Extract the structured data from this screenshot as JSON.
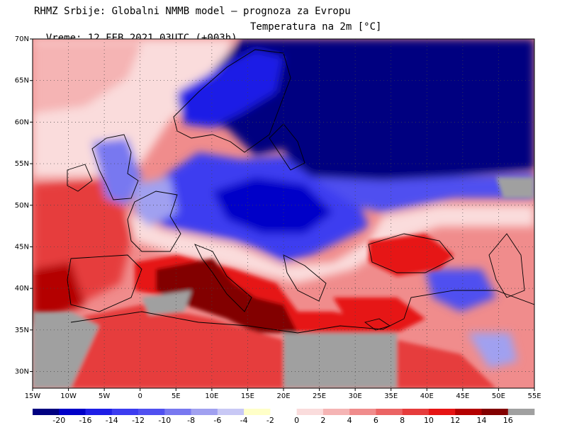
{
  "header": {
    "line1": "RHMZ Srbije: Globalni NMMB model — prognoza za Evropu",
    "line2_time": "Vreme: 12 FEB 2021 03UTC (+003h)",
    "line2_param": "Temperatura na 2m [°C]"
  },
  "map": {
    "lon_range": [
      -15,
      55
    ],
    "lat_range": [
      28,
      70
    ],
    "lat_labels": [
      "70N",
      "65N",
      "60N",
      "55N",
      "50N",
      "45N",
      "40N",
      "35N",
      "30N"
    ],
    "lat_values": [
      70,
      65,
      60,
      55,
      50,
      45,
      40,
      35,
      30
    ],
    "lon_labels": [
      "15W",
      "10W",
      "5W",
      "0",
      "5E",
      "10E",
      "15E",
      "20E",
      "25E",
      "30E",
      "35E",
      "40E",
      "45E",
      "50E",
      "55E"
    ],
    "lon_values": [
      -15,
      -10,
      -5,
      0,
      5,
      10,
      15,
      20,
      25,
      30,
      35,
      40,
      45,
      50,
      55
    ],
    "grid": "dotted"
  },
  "colorbar": {
    "labels": [
      "-20",
      "-16",
      "-14",
      "-12",
      "-10",
      "-8",
      "-6",
      "-4",
      "-2",
      "0",
      "2",
      "4",
      "6",
      "8",
      "10",
      "12",
      "14",
      "16"
    ],
    "colors": [
      "#000080",
      "#0000c8",
      "#1e1ee6",
      "#3c3cf0",
      "#5050f0",
      "#7878f0",
      "#a0a0f0",
      "#c8c8f5",
      "#ffffc8",
      "#ffffff",
      "#fadcdc",
      "#f5b4b4",
      "#f08c8c",
      "#eb6464",
      "#e63c3c",
      "#e61414",
      "#b40000",
      "#820000",
      "#a0a0a0"
    ]
  }
}
